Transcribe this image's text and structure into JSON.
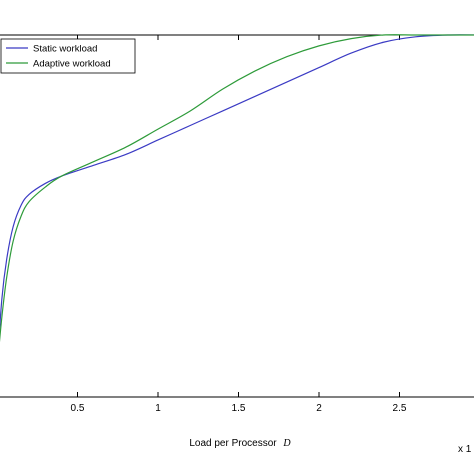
{
  "chart_data": {
    "type": "line",
    "title": "",
    "xlabel": "Load per Processor",
    "xlabel_symbol": "D",
    "x_multiplier_label": "x 1",
    "ylabel": "",
    "xlim": [
      0,
      3
    ],
    "ylim": [
      0,
      1
    ],
    "x_ticks": [
      "0.5",
      "1",
      "1.5",
      "2",
      "2.5"
    ],
    "x_tick_values": [
      0.5,
      1,
      1.5,
      2,
      2.5
    ],
    "grid": false,
    "legend_position": "top-left",
    "series": [
      {
        "name": "Static workload",
        "color": "#3b3bc4",
        "x": [
          0,
          0.03,
          0.06,
          0.1,
          0.15,
          0.2,
          0.3,
          0.4,
          0.6,
          0.8,
          1.0,
          1.2,
          1.4,
          1.6,
          1.8,
          2.0,
          2.2,
          2.4,
          2.6,
          2.8,
          3.0
        ],
        "y": [
          0.08,
          0.27,
          0.38,
          0.47,
          0.53,
          0.56,
          0.59,
          0.61,
          0.64,
          0.67,
          0.71,
          0.75,
          0.79,
          0.83,
          0.87,
          0.91,
          0.95,
          0.98,
          0.995,
          1.0,
          1.0
        ]
      },
      {
        "name": "Adaptive workload",
        "color": "#2e9b3a",
        "x": [
          0,
          0.03,
          0.06,
          0.1,
          0.15,
          0.2,
          0.3,
          0.4,
          0.6,
          0.8,
          1.0,
          1.2,
          1.4,
          1.6,
          1.8,
          2.0,
          2.2,
          2.4,
          2.6,
          2.8,
          3.0
        ],
        "y": [
          0.08,
          0.22,
          0.33,
          0.43,
          0.5,
          0.54,
          0.58,
          0.61,
          0.65,
          0.69,
          0.74,
          0.79,
          0.85,
          0.9,
          0.94,
          0.97,
          0.99,
          1.0,
          1.0,
          1.0,
          1.0
        ]
      }
    ]
  }
}
